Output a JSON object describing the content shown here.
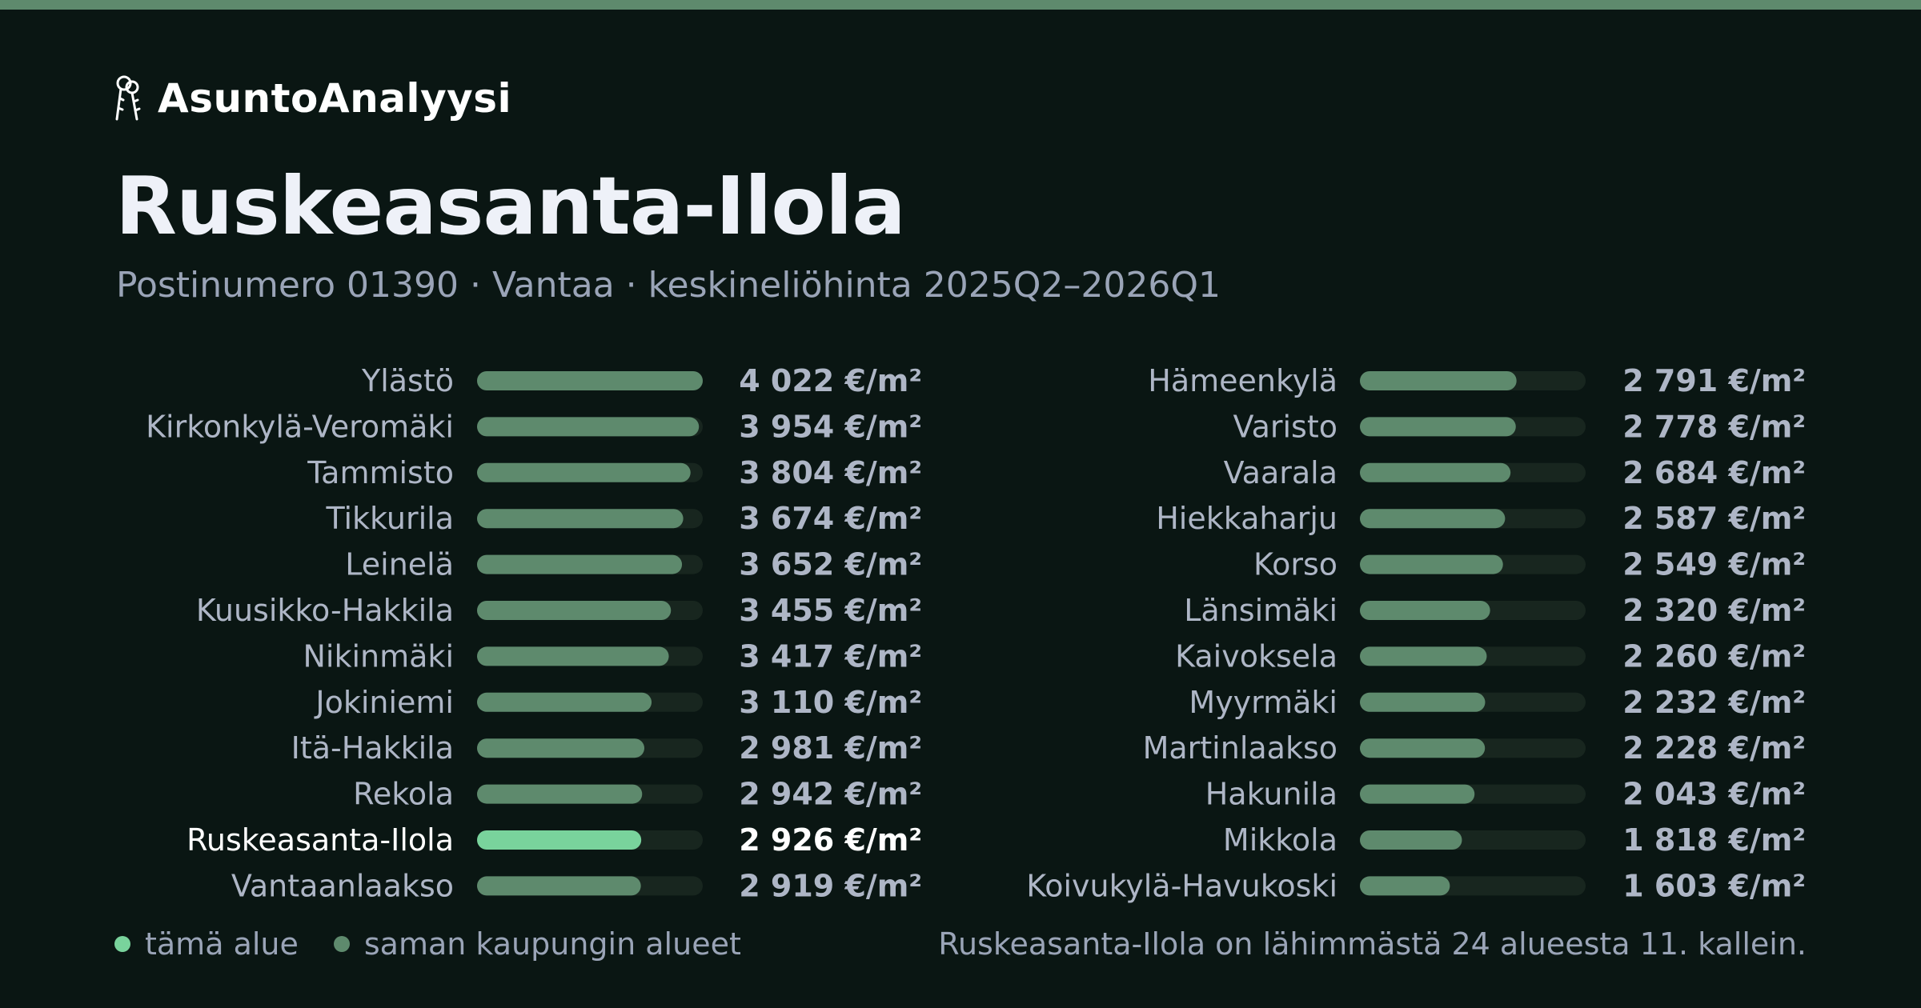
{
  "brand": {
    "name": "AsuntoAnalyysi",
    "icon": "keys-icon"
  },
  "header": {
    "title": "Ruskeasanta-Ilola",
    "subtitle": "Postinumero 01390 · Vantaa · keskineliöhinta 2025Q2–2026Q1"
  },
  "colors": {
    "background": "#0a1613",
    "accent_bar": "#5e8a6d",
    "bar": "#5e8a6d",
    "bar_highlight": "#79d39c",
    "track": "#18261f",
    "label": "#aeb6c6",
    "label_highlight": "#ffffff"
  },
  "chart_data": {
    "type": "bar",
    "orientation": "horizontal",
    "unit": "€/m²",
    "highlight": "Ruskeasanta-Ilola",
    "columns": [
      {
        "categories": [
          "Ylästö",
          "Kirkonkylä-Veromäki",
          "Tammisto",
          "Tikkurila",
          "Leinelä",
          "Kuusikko-Hakkila",
          "Nikinmäki",
          "Jokiniemi",
          "Itä-Hakkila",
          "Rekola",
          "Ruskeasanta-Ilola",
          "Vantaanlaakso"
        ],
        "values": [
          4022,
          3954,
          3804,
          3674,
          3652,
          3455,
          3417,
          3110,
          2981,
          2942,
          2926,
          2919
        ],
        "labels": [
          "4 022 €/m²",
          "3 954 €/m²",
          "3 804 €/m²",
          "3 674 €/m²",
          "3 652 €/m²",
          "3 455 €/m²",
          "3 417 €/m²",
          "3 110 €/m²",
          "2 981 €/m²",
          "2 942 €/m²",
          "2 926 €/m²",
          "2 919 €/m²"
        ]
      },
      {
        "categories": [
          "Hämeenkylä",
          "Varisto",
          "Vaarala",
          "Hiekkaharju",
          "Korso",
          "Länsimäki",
          "Kaivoksela",
          "Myyrmäki",
          "Martinlaakso",
          "Hakunila",
          "Mikkola",
          "Koivukylä-Havukoski"
        ],
        "values": [
          2791,
          2778,
          2684,
          2587,
          2549,
          2320,
          2260,
          2232,
          2228,
          2043,
          1818,
          1603
        ],
        "labels": [
          "2 791 €/m²",
          "2 778 €/m²",
          "2 684 €/m²",
          "2 587 €/m²",
          "2 549 €/m²",
          "2 320 €/m²",
          "2 260 €/m²",
          "2 232 €/m²",
          "2 228 €/m²",
          "2 043 €/m²",
          "1 818 €/m²",
          "1 603 €/m²"
        ]
      }
    ],
    "xlim": [
      0,
      4022
    ]
  },
  "legend": {
    "this_area": "tämä alue",
    "same_city": "saman kaupungin alueet"
  },
  "summary": "Ruskeasanta-Ilola on lähimmästä 24 alueesta 11. kallein."
}
